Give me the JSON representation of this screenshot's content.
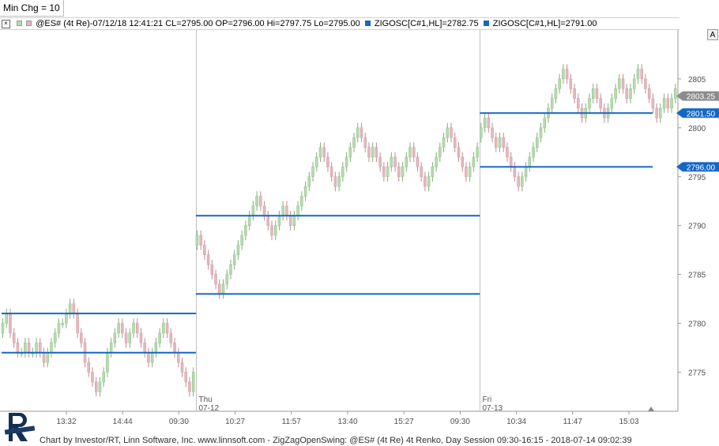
{
  "min_chg_label": "Min Chg = 10",
  "info": {
    "close_icon": "close-icon",
    "main": "@ES# (4t Re)-07/12/18 12:41:21 CL=2795.00 OP=2796.00 Hi=2797.75 Lo=2795.00",
    "zig1": "ZIGOSC[C#1,HL]=2782.75",
    "zig2": "ZIGOSC[C#1,HL]=2791.00"
  },
  "autoscale_button": "A",
  "footer_text": "Chart by Investor/RT, Linn Software, Inc. www.linnsoft.com - ZigZagOpenSwing: @ES# (4t Re) 4t Renko, Day Session 09:30-16:15 - 2018-07-14 09:02:39",
  "colors": {
    "up": "#b9d9b1",
    "down": "#e2b9bf",
    "zigzag": "#1467c4",
    "grid": "#c0c0c0"
  },
  "chart_data": {
    "type": "candlestick",
    "ylim": [
      2771,
      2810
    ],
    "y_ticks": [
      2775,
      2780,
      2785,
      2790,
      2795,
      2800,
      2805
    ],
    "x_tick_labels": [
      "13:32",
      "14:44",
      "09:30",
      "10:27",
      "11:57",
      "13:40",
      "15:27",
      "09:30",
      "10:34",
      "11:47",
      "15:03"
    ],
    "sessions": [
      {
        "day": "",
        "date": "",
        "start_bar": 0,
        "closes": [
          2780,
          2781,
          2779,
          2778,
          2777,
          2777,
          2778,
          2777,
          2777,
          2778,
          2777,
          2776,
          2777,
          2778,
          2779,
          2780,
          2780,
          2781,
          2782,
          2781,
          2779,
          2778,
          2776,
          2775,
          2774,
          2773,
          2774,
          2775,
          2777,
          2778,
          2779,
          2780,
          2779,
          2778,
          2779,
          2780,
          2779,
          2778,
          2777,
          2776,
          2777,
          2778,
          2779,
          2780,
          2779,
          2778,
          2777,
          2776,
          2775,
          2774,
          2773,
          2775
        ]
      },
      {
        "day": "Thu",
        "date": "07-12",
        "start_bar": 52,
        "closes": [
          2789,
          2788,
          2787,
          2786,
          2785,
          2784,
          2783,
          2784,
          2785,
          2786,
          2787,
          2788,
          2789,
          2790,
          2791,
          2792,
          2793,
          2792,
          2791,
          2790,
          2789,
          2790,
          2791,
          2792,
          2791,
          2790,
          2791,
          2792,
          2793,
          2794,
          2795,
          2796,
          2797,
          2798,
          2797,
          2796,
          2795,
          2794,
          2795,
          2796,
          2797,
          2798,
          2799,
          2800,
          2799,
          2798,
          2797,
          2798,
          2797,
          2796,
          2795,
          2796,
          2797,
          2796,
          2795,
          2796,
          2797,
          2798,
          2797,
          2796,
          2795,
          2794,
          2795,
          2796,
          2797,
          2798,
          2799,
          2800,
          2799,
          2798,
          2797,
          2796,
          2795,
          2796,
          2797,
          2798
        ]
      },
      {
        "day": "Fri",
        "date": "07-13",
        "start_bar": 128,
        "closes": [
          2800,
          2801,
          2800,
          2799,
          2798,
          2799,
          2798,
          2797,
          2796,
          2795,
          2794,
          2795,
          2796,
          2797,
          2798,
          2799,
          2800,
          2801,
          2802,
          2803,
          2804,
          2805,
          2806,
          2805,
          2804,
          2803,
          2802,
          2801,
          2802,
          2803,
          2804,
          2803,
          2802,
          2801,
          2802,
          2803,
          2804,
          2805,
          2804,
          2803,
          2804,
          2805,
          2806,
          2805,
          2804,
          2803,
          2802,
          2801,
          2802,
          2803,
          2802,
          2803,
          2804
        ]
      }
    ],
    "total_bars": 181,
    "session_separators_bar": [
      52,
      128
    ],
    "zigzag_levels": [
      {
        "from_bar": 0,
        "to_bar": 52,
        "value": 2781
      },
      {
        "from_bar": 0,
        "to_bar": 52,
        "value": 2777
      },
      {
        "from_bar": 52,
        "to_bar": 128,
        "value": 2791
      },
      {
        "from_bar": 52,
        "to_bar": 128,
        "value": 2783
      },
      {
        "from_bar": 128,
        "to_bar": 181,
        "value": 2801.5
      },
      {
        "from_bar": 128,
        "to_bar": 181,
        "value": 2796
      }
    ],
    "price_tags": [
      {
        "label": "2803.25",
        "value": 2803.25,
        "style": "gray"
      },
      {
        "label": "2801.50",
        "value": 2801.5,
        "style": "blue"
      },
      {
        "label": "2796.00",
        "value": 2796,
        "style": "blue"
      }
    ]
  }
}
